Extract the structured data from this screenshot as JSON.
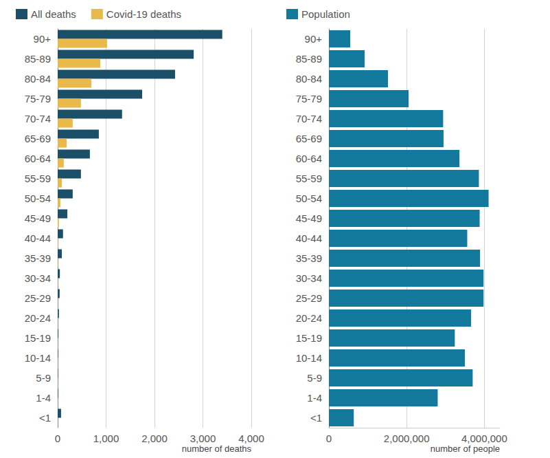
{
  "chart_data": [
    {
      "type": "bar",
      "orientation": "horizontal",
      "categories": [
        "90+",
        "85-89",
        "80-84",
        "75-79",
        "70-74",
        "65-69",
        "60-64",
        "55-59",
        "50-54",
        "45-49",
        "40-44",
        "35-39",
        "30-34",
        "25-29",
        "20-24",
        "15-19",
        "10-14",
        "5-9",
        "1-4",
        "<1"
      ],
      "series": [
        {
          "name": "All deaths",
          "color": "#1b4f68",
          "values": [
            3400,
            2810,
            2425,
            1745,
            1330,
            850,
            665,
            480,
            310,
            200,
            110,
            85,
            45,
            40,
            25,
            15,
            10,
            8,
            12,
            70
          ]
        },
        {
          "name": "Covid-19 deaths",
          "color": "#e9b949",
          "values": [
            1020,
            880,
            695,
            480,
            310,
            185,
            125,
            85,
            55,
            25,
            10,
            5,
            3,
            2,
            1,
            0,
            0,
            0,
            0,
            0
          ]
        }
      ],
      "xlim": [
        0,
        4000
      ],
      "xticks": [
        0,
        {
          "value": 1000,
          "label": "1,000"
        },
        {
          "value": 2000,
          "label": "2,000"
        },
        {
          "value": 3000,
          "label": "3,000"
        },
        {
          "value": 4000,
          "label": "4,000"
        }
      ],
      "xlabel": "number of deaths",
      "grid": true,
      "legend": "top-left"
    },
    {
      "type": "bar",
      "orientation": "horizontal",
      "categories": [
        "90+",
        "85-89",
        "80-84",
        "75-79",
        "70-74",
        "65-69",
        "60-64",
        "55-59",
        "50-54",
        "45-49",
        "40-44",
        "35-39",
        "30-34",
        "25-29",
        "20-24",
        "15-19",
        "10-14",
        "5-9",
        "1-4",
        "<1"
      ],
      "series": [
        {
          "name": "Population",
          "color": "#13799d",
          "values": [
            550000,
            920000,
            1520000,
            2050000,
            2940000,
            2950000,
            3360000,
            3860000,
            4110000,
            3880000,
            3560000,
            3890000,
            3980000,
            3980000,
            3660000,
            3240000,
            3500000,
            3700000,
            2800000,
            640000
          ]
        }
      ],
      "xlim": [
        0,
        4400000
      ],
      "xticks": [
        0,
        {
          "value": 2000000,
          "label": "2,000,000"
        },
        {
          "value": 4000000,
          "label": "4,000,000"
        }
      ],
      "xlabel": "number of people",
      "grid": true,
      "legend": "top-left"
    }
  ]
}
